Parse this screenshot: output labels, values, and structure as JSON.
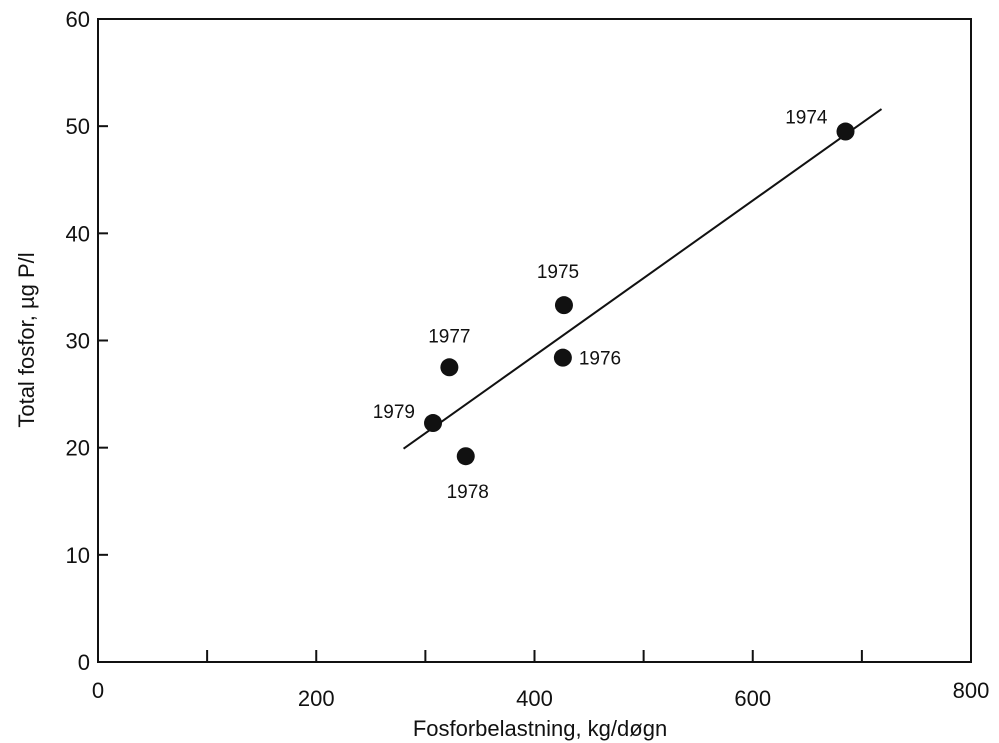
{
  "chart_data": {
    "type": "scatter",
    "xlabel": "Fosforbelastning, kg/døgn",
    "ylabel": "Total fosfor, µg P/l",
    "xlim": [
      0,
      800
    ],
    "ylim": [
      0,
      60
    ],
    "x_ticks": [
      0,
      200,
      400,
      600,
      800
    ],
    "y_ticks": [
      0,
      10,
      20,
      30,
      40,
      50,
      60
    ],
    "grid": false,
    "points": [
      {
        "label": "1974",
        "x": 685,
        "y": 49.5
      },
      {
        "label": "1975",
        "x": 427,
        "y": 33.3
      },
      {
        "label": "1976",
        "x": 426,
        "y": 28.4
      },
      {
        "label": "1977",
        "x": 322,
        "y": 27.5
      },
      {
        "label": "1978",
        "x": 337,
        "y": 19.2
      },
      {
        "label": "1979",
        "x": 307,
        "y": 22.3
      }
    ],
    "fit_line": {
      "x": [
        280,
        718
      ],
      "y": [
        19.9,
        51.6
      ]
    }
  }
}
